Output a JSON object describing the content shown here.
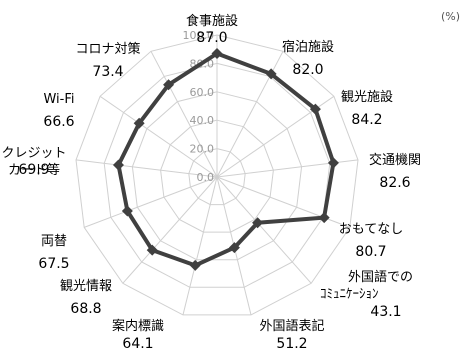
{
  "chart_data": {
    "type": "radar",
    "unit": "(%)",
    "ylim": [
      0,
      100
    ],
    "ticks": [
      "0.0",
      "20.0",
      "40.0",
      "60.0",
      "80.0",
      "100.0"
    ],
    "categories": [
      {
        "label": "食事施設",
        "value_label": "87.0"
      },
      {
        "label": "宿泊施設",
        "value_label": "82.0"
      },
      {
        "label": "観光施設",
        "value_label": "84.2"
      },
      {
        "label": "交通機関",
        "value_label": "82.6"
      },
      {
        "label": "おもてなし",
        "value_label": "80.7"
      },
      {
        "label": "外国語での\nｺﾐｭﾆｹｰｼｮﾝ",
        "value_label": "43.1"
      },
      {
        "label": "外国語表記",
        "value_label": "51.2"
      },
      {
        "label": "案内標識",
        "value_label": "64.1"
      },
      {
        "label": "観光情報",
        "value_label": "68.8"
      },
      {
        "label": "両替",
        "value_label": "67.5"
      },
      {
        "label": "クレジット\nカード等",
        "value_label": "69.9"
      },
      {
        "label": "Wi-Fi",
        "value_label": "66.6"
      },
      {
        "label": "コロナ対策",
        "value_label": "73.4"
      }
    ],
    "values": [
      87.0,
      82.0,
      84.2,
      82.6,
      80.7,
      43.1,
      51.2,
      64.1,
      68.8,
      67.5,
      69.9,
      66.6,
      73.4
    ],
    "series_color": "#404040",
    "grid_color": "#d0d0d0",
    "grid": true,
    "legend": false
  }
}
